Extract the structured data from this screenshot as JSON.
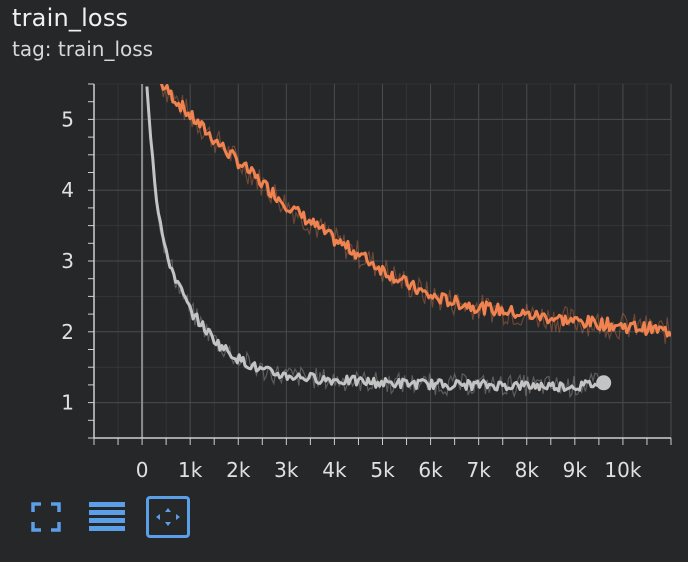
{
  "title": "train_loss",
  "tag_label": "tag: train_loss",
  "toolbar": {
    "icons": [
      "fullscreen-icon",
      "list-icon",
      "fit-domain-icon"
    ],
    "accent_color": "#5a9fe8"
  },
  "colors": {
    "background": "#262729",
    "grid": "#4a4b4e",
    "series_orange": "#f0834f",
    "series_gray": "#c4c4c4"
  },
  "chart_data": {
    "type": "line",
    "title": "",
    "xlabel": "",
    "ylabel": "",
    "xlim": [
      -1000,
      11000
    ],
    "ylim": [
      0.5,
      5.5
    ],
    "x_ticks": [
      0,
      1000,
      2000,
      3000,
      4000,
      5000,
      6000,
      7000,
      8000,
      9000,
      10000
    ],
    "x_tick_labels": [
      "0",
      "1k",
      "2k",
      "3k",
      "4k",
      "5k",
      "6k",
      "7k",
      "8k",
      "9k",
      "10k"
    ],
    "y_ticks": [
      1,
      2,
      3,
      4,
      5
    ],
    "y_tick_labels": [
      "1",
      "2",
      "3",
      "4",
      "5"
    ],
    "grid": true,
    "series": [
      {
        "color": "#f0834f",
        "x": [
          400,
          1000,
          1500,
          2000,
          2500,
          3000,
          3500,
          4000,
          4500,
          5000,
          5500,
          6000,
          6500,
          7000,
          7500,
          8000,
          8500,
          9000,
          9500,
          10000,
          10500,
          11000
        ],
        "y": [
          5.5,
          5.05,
          4.72,
          4.4,
          4.1,
          3.8,
          3.55,
          3.3,
          3.1,
          2.88,
          2.68,
          2.5,
          2.42,
          2.35,
          2.3,
          2.24,
          2.2,
          2.15,
          2.12,
          2.08,
          2.05,
          2.0
        ]
      },
      {
        "color": "#c4c4c4",
        "x": [
          100,
          200,
          300,
          400,
          500,
          700,
          1000,
          1300,
          1600,
          2000,
          2500,
          3000,
          4000,
          5000,
          6000,
          7000,
          8000,
          9000,
          9600
        ],
        "y": [
          5.5,
          4.6,
          3.9,
          3.45,
          3.1,
          2.75,
          2.3,
          2.05,
          1.82,
          1.62,
          1.45,
          1.38,
          1.32,
          1.28,
          1.26,
          1.25,
          1.24,
          1.23,
          1.28
        ]
      }
    ]
  }
}
